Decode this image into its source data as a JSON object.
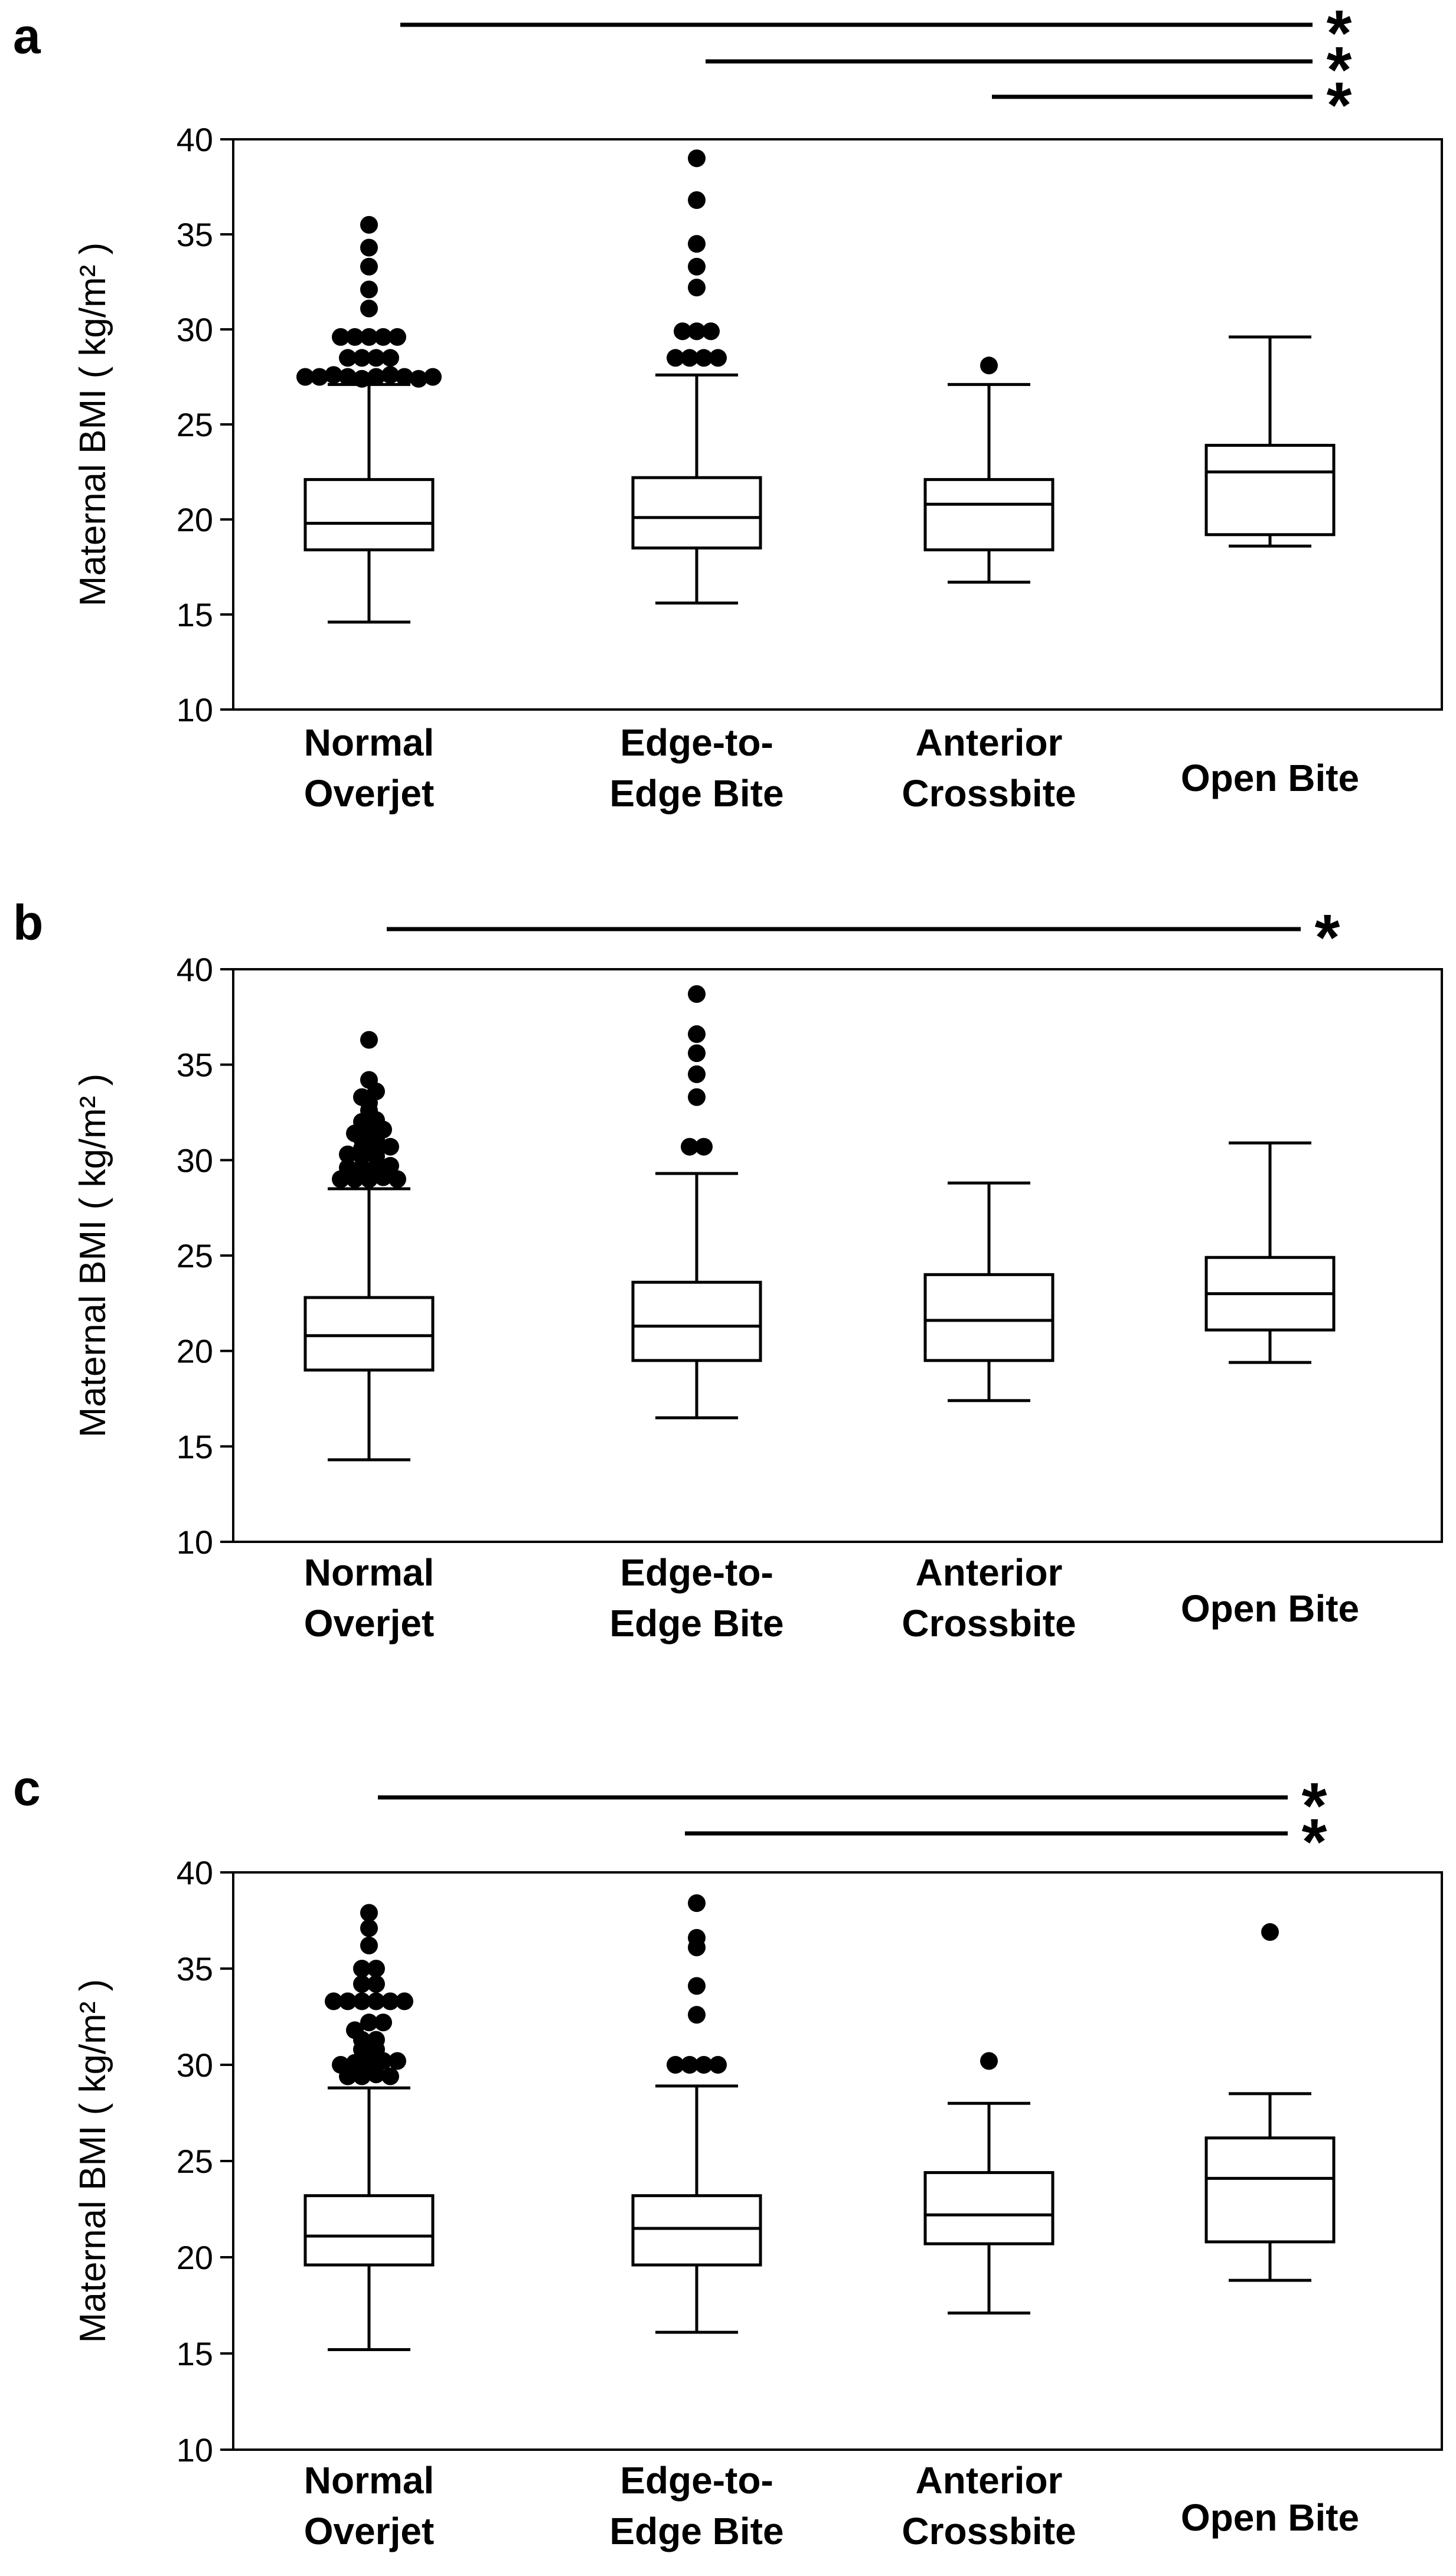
{
  "y_axis_label": "Maternal BMI ( kg/m² )",
  "chart_data": [
    {
      "type": "boxplot",
      "panel_label": "a",
      "categories": [
        [
          "Normal",
          "Overjet"
        ],
        [
          "Edge-to-",
          "Edge Bite"
        ],
        [
          "Anterior",
          "Crossbite"
        ],
        [
          "Open Bite"
        ]
      ],
      "ylim": [
        10,
        40
      ],
      "yticks": [
        10,
        15,
        20,
        25,
        30,
        35,
        40
      ],
      "grid": false,
      "boxes": [
        {
          "whisker_low": 14.6,
          "q1": 18.4,
          "median": 19.8,
          "q3": 22.1,
          "whisker_high": 27.1,
          "outliers": [
            27.5,
            27.5,
            27.6,
            27.5,
            27.4,
            27.5,
            27.6,
            27.5,
            27.4,
            27.5,
            28.5,
            28.5,
            28.5,
            28.5,
            29.6,
            29.6,
            29.6,
            29.6,
            29.6,
            31.1,
            32.1,
            33.3,
            34.3,
            35.5
          ]
        },
        {
          "whisker_low": 15.6,
          "q1": 18.5,
          "median": 20.1,
          "q3": 22.2,
          "whisker_high": 27.6,
          "outliers": [
            28.5,
            28.5,
            28.5,
            28.5,
            29.9,
            29.9,
            29.9,
            32.2,
            33.3,
            34.5,
            36.8,
            39.0
          ]
        },
        {
          "whisker_low": 16.7,
          "q1": 18.4,
          "median": 20.8,
          "q3": 22.1,
          "whisker_high": 27.1,
          "outliers": [
            28.1
          ]
        },
        {
          "whisker_low": 18.6,
          "q1": 19.2,
          "median": 22.5,
          "q3": 23.9,
          "whisker_high": 29.6,
          "outliers": []
        }
      ],
      "significance": [
        {
          "from": 0,
          "to": 3,
          "marker": "*"
        },
        {
          "from": 1,
          "to": 3,
          "marker": "*"
        },
        {
          "from": 2,
          "to": 3,
          "marker": "*"
        }
      ]
    },
    {
      "type": "boxplot",
      "panel_label": "b",
      "categories": [
        [
          "Normal",
          "Overjet"
        ],
        [
          "Edge-to-",
          "Edge Bite"
        ],
        [
          "Anterior",
          "Crossbite"
        ],
        [
          "Open Bite"
        ]
      ],
      "ylim": [
        10,
        40
      ],
      "yticks": [
        10,
        15,
        20,
        25,
        30,
        35,
        40
      ],
      "grid": false,
      "boxes": [
        {
          "whisker_low": 14.3,
          "q1": 19.0,
          "median": 20.8,
          "q3": 22.8,
          "whisker_high": 28.5,
          "outliers": [
            29.0,
            29.0,
            29.0,
            29.1,
            29.0,
            29.6,
            29.6,
            29.6,
            29.7,
            30.2,
            30.2,
            30.3,
            30.6,
            30.6,
            30.7,
            31.1,
            31.1,
            31.4,
            31.5,
            31.6,
            32.0,
            32.1,
            32.6,
            33.0,
            33.3,
            33.6,
            34.2,
            36.3
          ]
        },
        {
          "whisker_low": 16.5,
          "q1": 19.5,
          "median": 21.3,
          "q3": 23.6,
          "whisker_high": 29.3,
          "outliers": [
            30.7,
            30.7,
            33.3,
            34.5,
            35.6,
            36.6,
            38.7
          ]
        },
        {
          "whisker_low": 17.4,
          "q1": 19.5,
          "median": 21.6,
          "q3": 24.0,
          "whisker_high": 28.8,
          "outliers": []
        },
        {
          "whisker_low": 19.4,
          "q1": 21.1,
          "median": 23.0,
          "q3": 24.9,
          "whisker_high": 30.9,
          "outliers": []
        }
      ],
      "significance": [
        {
          "from": 0,
          "to": 3,
          "marker": "*"
        }
      ]
    },
    {
      "type": "boxplot",
      "panel_label": "c",
      "categories": [
        [
          "Normal",
          "Overjet"
        ],
        [
          "Edge-to-",
          "Edge Bite"
        ],
        [
          "Anterior",
          "Crossbite"
        ],
        [
          "Open Bite"
        ]
      ],
      "ylim": [
        10,
        40
      ],
      "yticks": [
        10,
        15,
        20,
        25,
        30,
        35,
        40
      ],
      "grid": false,
      "boxes": [
        {
          "whisker_low": 15.2,
          "q1": 19.6,
          "median": 21.1,
          "q3": 23.2,
          "whisker_high": 28.8,
          "outliers": [
            29.4,
            29.4,
            29.5,
            29.4,
            30.0,
            30.1,
            30.1,
            30.2,
            30.2,
            30.8,
            30.8,
            31.3,
            31.3,
            31.8,
            32.2,
            32.2,
            33.3,
            33.3,
            33.3,
            33.3,
            33.3,
            33.3,
            34.2,
            34.2,
            35.0,
            35.0,
            36.2,
            37.1,
            37.9
          ]
        },
        {
          "whisker_low": 16.1,
          "q1": 19.6,
          "median": 21.5,
          "q3": 23.2,
          "whisker_high": 28.9,
          "outliers": [
            30.0,
            30.0,
            30.0,
            30.0,
            32.6,
            34.1,
            36.1,
            36.6,
            38.4
          ]
        },
        {
          "whisker_low": 17.1,
          "q1": 20.7,
          "median": 22.2,
          "q3": 24.4,
          "whisker_high": 28.0,
          "outliers": [
            30.2
          ]
        },
        {
          "whisker_low": 18.8,
          "q1": 20.8,
          "median": 24.1,
          "q3": 26.2,
          "whisker_high": 28.5,
          "outliers": [
            36.9
          ]
        }
      ],
      "significance": [
        {
          "from": 0,
          "to": 3,
          "marker": "*"
        },
        {
          "from": 1,
          "to": 3,
          "marker": "*"
        }
      ]
    }
  ]
}
